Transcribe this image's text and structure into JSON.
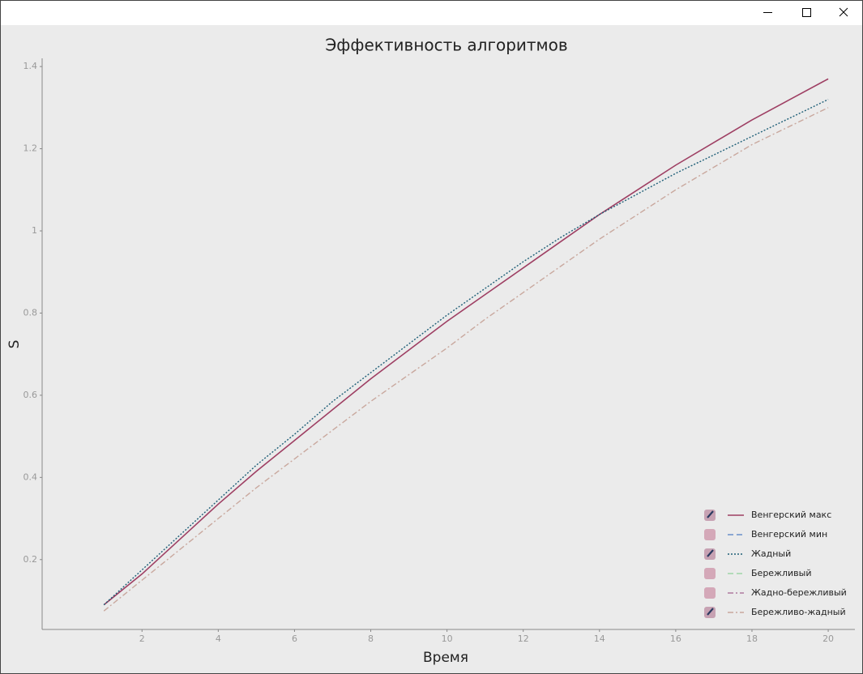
{
  "chart_data": {
    "type": "line",
    "title": "Эффективность алгоритмов",
    "xlabel": "Время",
    "ylabel": "S",
    "x": [
      1,
      2,
      3,
      4,
      5,
      6,
      7,
      8,
      9,
      10,
      11,
      12,
      13,
      14,
      15,
      16,
      17,
      18,
      19,
      20
    ],
    "xlim": [
      -0.62,
      20.7
    ],
    "xticks": [
      2,
      4,
      6,
      8,
      10,
      12,
      14,
      16,
      18,
      20
    ],
    "ylim": [
      0.03,
      1.42
    ],
    "yticks": [
      0.2,
      0.4,
      0.6,
      0.8,
      1,
      1.2,
      1.4
    ],
    "grid": false,
    "legend": "lower right",
    "series": [
      {
        "name": "Венгерский макс",
        "color": "#9e3f63",
        "dash": "solid",
        "checked": true,
        "values": [
          0.09,
          0.165,
          0.25,
          0.335,
          0.415,
          0.49,
          0.565,
          0.64,
          0.71,
          0.78,
          0.845,
          0.91,
          0.975,
          1.04,
          1.1,
          1.16,
          1.215,
          1.27,
          1.32,
          1.37
        ]
      },
      {
        "name": "Венгерский мин",
        "color": "#6b8fc9",
        "dash": "dashed",
        "checked": false
      },
      {
        "name": "Жадный",
        "color": "#1f5f78",
        "dash": "dotted",
        "checked": true,
        "values": [
          0.09,
          0.175,
          0.26,
          0.345,
          0.43,
          0.505,
          0.585,
          0.655,
          0.725,
          0.795,
          0.86,
          0.925,
          0.985,
          1.04,
          1.09,
          1.14,
          1.185,
          1.23,
          1.275,
          1.32
        ]
      },
      {
        "name": "Бережливый",
        "color": "#9fd6a8",
        "dash": "dashed",
        "checked": false
      },
      {
        "name": "Жадно-бережливый",
        "color": "#b07aa0",
        "dash": "dashdot",
        "checked": false
      },
      {
        "name": "Бережливо-жадный",
        "color": "#c9a89e",
        "dash": "dashdot",
        "checked": true,
        "values": [
          0.075,
          0.15,
          0.225,
          0.3,
          0.375,
          0.445,
          0.515,
          0.585,
          0.65,
          0.715,
          0.785,
          0.85,
          0.915,
          0.98,
          1.04,
          1.1,
          1.155,
          1.21,
          1.255,
          1.3
        ]
      }
    ]
  }
}
